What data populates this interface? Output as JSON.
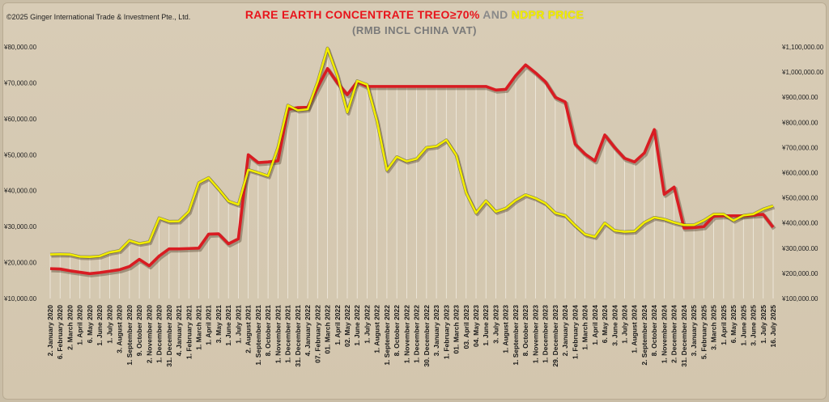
{
  "copyright": "©2025 Ginger International Trade & Investment Pte., Ltd.",
  "title": {
    "part1": "RARE EARTH CONCENTRATE TREO≥70%",
    "part2": " AND ",
    "part3": "NDPR PRICE",
    "subtitle": "(RMB INCL CHINA VAT)",
    "color_part1": "#e8141c",
    "color_part2": "#8a8a8a",
    "color_part3": "#f4f000"
  },
  "chart_data": {
    "type": "line",
    "left_axis": {
      "min": 10000,
      "max": 80000,
      "step": 10000,
      "ticks": [
        "¥10,000.00",
        "¥20,000.00",
        "¥30,000.00",
        "¥40,000.00",
        "¥50,000.00",
        "¥60,000.00",
        "¥70,000.00",
        "¥80,000.00"
      ]
    },
    "right_axis": {
      "min": 100000,
      "max": 1100000,
      "step": 100000,
      "ticks": [
        "¥100,000.00",
        "¥200,000.00",
        "¥300,000.00",
        "¥400,000.00",
        "¥500,000.00",
        "¥600,000.00",
        "¥700,000.00",
        "¥800,000.00",
        "¥900,000.00",
        "¥1,000,000.00",
        "¥1,100,000.00"
      ]
    },
    "categories": [
      "2. January 2020",
      "6. February 2020",
      "2. March 2020",
      "1. April 2020",
      "6. May 2020",
      "1. June 2020",
      "1. July 2020",
      "3. August 2020",
      "1. September 2020",
      "9. October 2020",
      "2. November 2020",
      "1. December 2020",
      "31. December 2020",
      "4. January 2021",
      "1. February 2021",
      "1. March 2021",
      "1. April 2021",
      "3. May 2021",
      "1. June 2021",
      "1. July 2021",
      "2. August 2021",
      "1. September 2021",
      "8. October 2021",
      "1. November 2021",
      "1. December 2021",
      "31. December 2021",
      "4. January 2022",
      "07. February 2022",
      "01. March 2022",
      "1. April 2022",
      "02. May 2022",
      "1. June 2022",
      "1. July 2022",
      "1. August 2022",
      "1. September 2022",
      "8. October 2022",
      "1. November 2022",
      "1. December 2022",
      "30. December 2022",
      "3. January 2023",
      "1. February 2023",
      "01. March 2023",
      "03. April 2023",
      "04. May 2023",
      "1. June 2023",
      "3. July 2023",
      "1. August 2023",
      "1. September 2023",
      "8. October 2023",
      "1. November 2023",
      "1. December 2023",
      "29. December 2023",
      "2. January 2024",
      "1. February 2024",
      "1. March 2024",
      "1. April 2024",
      "6. May 2024",
      "3. June 2024",
      "1. July 2024",
      "1. August 2024",
      "2. September 2024",
      "8. October 2024",
      "1. November 2024",
      "2. December 2024",
      "31. December 2024",
      "3. January 2025",
      "5. February 2025",
      "3. March 2025",
      "1. April 2025",
      "6. May 2025",
      "1. June 2025",
      "3. June 2025",
      "1. July 2025",
      "16. July 2025"
    ],
    "series": [
      {
        "name": "RARE EARTH CONCENTRATE TREO≥70%",
        "axis": "left",
        "color": "#d91c22",
        "values": [
          18300,
          18200,
          17700,
          17300,
          16900,
          17200,
          17600,
          18000,
          18900,
          20900,
          19100,
          21800,
          23800,
          23800,
          23900,
          24000,
          27900,
          28000,
          25200,
          26600,
          50000,
          47800,
          48000,
          48300,
          62600,
          63100,
          63200,
          68700,
          74000,
          70000,
          66700,
          70300,
          69000,
          69000,
          69000,
          69000,
          69000,
          69000,
          69000,
          69000,
          69000,
          69000,
          69000,
          69000,
          69000,
          68000,
          68200,
          72000,
          75000,
          72800,
          70300,
          66000,
          64700,
          53000,
          50200,
          48300,
          55500,
          52000,
          49000,
          48000,
          50500,
          57000,
          39000,
          41000,
          29600,
          29700,
          30000,
          32900,
          33000,
          33000,
          33000,
          33200,
          33400,
          29800
        ]
      },
      {
        "name": "NDPR PRICE",
        "axis": "right",
        "color": "#f2ec00",
        "values": [
          275000,
          276000,
          275000,
          266000,
          265000,
          268000,
          283000,
          290000,
          330000,
          318000,
          325000,
          420000,
          406000,
          407000,
          445000,
          560000,
          580000,
          535000,
          487000,
          473000,
          612000,
          600000,
          587000,
          700000,
          868000,
          848000,
          852000,
          960000,
          1095000,
          985000,
          840000,
          965000,
          950000,
          805000,
          610000,
          663000,
          645000,
          655000,
          700000,
          705000,
          730000,
          670000,
          520000,
          440000,
          488000,
          445000,
          458000,
          490000,
          512000,
          498000,
          478000,
          440000,
          430000,
          390000,
          355000,
          345000,
          400000,
          370000,
          365000,
          367000,
          402000,
          422000,
          415000,
          402000,
          392000,
          392000,
          410000,
          435000,
          435000,
          410000,
          430000,
          435000,
          455000,
          468000
        ]
      }
    ]
  }
}
